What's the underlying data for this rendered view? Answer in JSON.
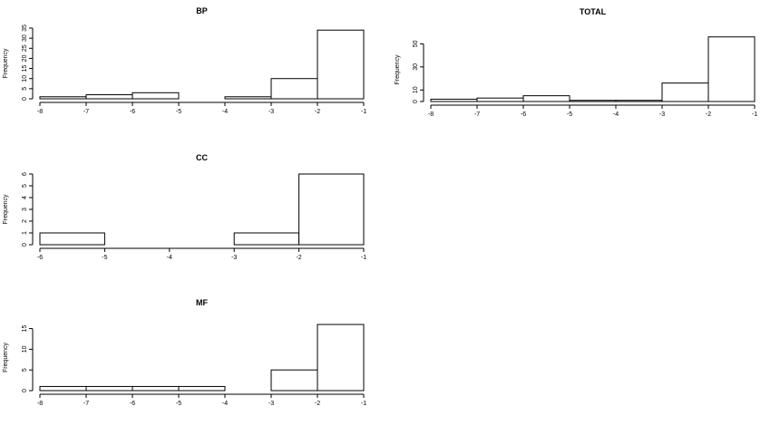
{
  "chart_data": [
    {
      "type": "bar",
      "title": "BP",
      "ylabel": "Frequency",
      "xlabel": "",
      "xlim": [
        -8,
        -1
      ],
      "ylim": [
        0,
        35
      ],
      "xticks": [
        "-8",
        "-7",
        "-6",
        "-5",
        "-4",
        "-3",
        "-2",
        "-1"
      ],
      "yticks": [
        "0",
        "5",
        "10",
        "15",
        "20",
        "25",
        "30",
        "35"
      ],
      "bins": [
        {
          "x0": -8,
          "x1": -7,
          "count": 1
        },
        {
          "x0": -7,
          "x1": -6,
          "count": 2
        },
        {
          "x0": -6,
          "x1": -5,
          "count": 3
        },
        {
          "x0": -5,
          "x1": -4,
          "count": 0
        },
        {
          "x0": -4,
          "x1": -3,
          "count": 1
        },
        {
          "x0": -3,
          "x1": -2,
          "count": 10
        },
        {
          "x0": -2,
          "x1": -1,
          "count": 34
        }
      ]
    },
    {
      "type": "bar",
      "title": "TOTAL",
      "ylabel": "Frequency",
      "xlabel": "",
      "xlim": [
        -8,
        -1
      ],
      "ylim": [
        0,
        55
      ],
      "xticks": [
        "-8",
        "-7",
        "-6",
        "-5",
        "-4",
        "-3",
        "-2",
        "-1"
      ],
      "yticks": [
        "0",
        "10",
        "30",
        "50"
      ],
      "ytick_values": [
        0,
        10,
        30,
        50
      ],
      "bins": [
        {
          "x0": -8,
          "x1": -7,
          "count": 2
        },
        {
          "x0": -7,
          "x1": -6,
          "count": 3
        },
        {
          "x0": -6,
          "x1": -5,
          "count": 5
        },
        {
          "x0": -5,
          "x1": -4,
          "count": 1
        },
        {
          "x0": -4,
          "x1": -3,
          "count": 1
        },
        {
          "x0": -3,
          "x1": -2,
          "count": 16
        },
        {
          "x0": -2,
          "x1": -1,
          "count": 56
        }
      ]
    },
    {
      "type": "bar",
      "title": "CC",
      "ylabel": "Frequency",
      "xlabel": "",
      "xlim": [
        -6,
        -1
      ],
      "ylim": [
        0,
        6
      ],
      "xticks": [
        "-6",
        "-5",
        "-4",
        "-3",
        "-2",
        "-1"
      ],
      "yticks": [
        "0",
        "1",
        "2",
        "3",
        "4",
        "5",
        "6"
      ],
      "bins": [
        {
          "x0": -6,
          "x1": -5,
          "count": 1
        },
        {
          "x0": -5,
          "x1": -4,
          "count": 0
        },
        {
          "x0": -4,
          "x1": -3,
          "count": 0
        },
        {
          "x0": -3,
          "x1": -2,
          "count": 1
        },
        {
          "x0": -2,
          "x1": -1,
          "count": 6
        }
      ]
    },
    {
      "type": "bar",
      "title": "MF",
      "ylabel": "Frequency",
      "xlabel": "",
      "xlim": [
        -8,
        -1
      ],
      "ylim": [
        0,
        16
      ],
      "xticks": [
        "-8",
        "-7",
        "-6",
        "-5",
        "-4",
        "-3",
        "-2",
        "-1"
      ],
      "yticks": [
        "0",
        "5",
        "10",
        "15"
      ],
      "bins": [
        {
          "x0": -8,
          "x1": -7,
          "count": 1
        },
        {
          "x0": -7,
          "x1": -6,
          "count": 1
        },
        {
          "x0": -6,
          "x1": -5,
          "count": 1
        },
        {
          "x0": -5,
          "x1": -4,
          "count": 1
        },
        {
          "x0": -4,
          "x1": -3,
          "count": 0
        },
        {
          "x0": -3,
          "x1": -2,
          "count": 5
        },
        {
          "x0": -2,
          "x1": -1,
          "count": 16
        }
      ]
    }
  ]
}
